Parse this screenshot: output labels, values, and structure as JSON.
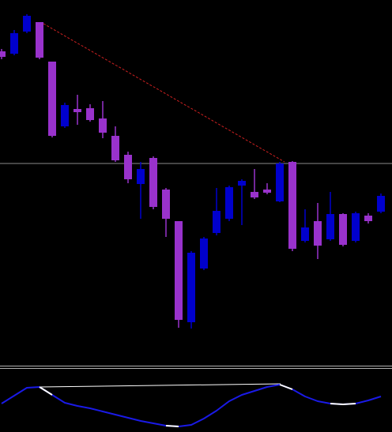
{
  "chart_data": [
    {
      "type": "candlestick",
      "up_color": "#0000cd",
      "down_color": "#9932cc",
      "open": [
        395,
        392,
        420,
        432,
        382,
        300,
        322,
        323,
        310,
        288,
        264,
        227,
        260,
        220,
        180,
        52,
        120,
        165,
        183,
        225,
        217,
        220,
        205,
        255,
        155,
        180,
        157,
        189,
        155,
        187,
        192
      ],
      "high": [
        398,
        422,
        442,
        432,
        382,
        330,
        340,
        328,
        332,
        300,
        268,
        255,
        262,
        222,
        180,
        142,
        160,
        222,
        225,
        233,
        246,
        228,
        255,
        256,
        195,
        203,
        217,
        190,
        192,
        190,
        215
      ],
      "low": [
        385,
        390,
        418,
        385,
        286,
        298,
        302,
        306,
        285,
        255,
        228,
        183,
        195,
        160,
        45,
        44,
        118,
        162,
        180,
        175,
        208,
        214,
        204,
        142,
        153,
        132,
        155,
        148,
        153,
        177,
        190
      ],
      "close": [
        388,
        418,
        440,
        387,
        288,
        327,
        318,
        308,
        292,
        257,
        233,
        246,
        198,
        183,
        55,
        140,
        158,
        193,
        223,
        231,
        210,
        216,
        253,
        145,
        172,
        149,
        189,
        150,
        190,
        180,
        212
      ],
      "ylim": [
        0,
        460
      ]
    },
    {
      "type": "line",
      "series": [
        {
          "color": "#1a1ae6",
          "values": [
            36,
            46,
            56,
            57,
            47,
            37,
            33,
            30,
            26,
            22,
            18,
            14,
            11,
            8,
            7,
            9,
            17,
            27,
            39,
            47,
            52,
            57,
            60,
            54,
            45,
            39,
            36,
            35,
            36,
            40,
            45
          ]
        },
        {
          "color": "#ffffff",
          "values": [
            null,
            null,
            null,
            57,
            47,
            null,
            null,
            null,
            null,
            null,
            null,
            null,
            null,
            8,
            7,
            null,
            null,
            null,
            null,
            null,
            null,
            null,
            60,
            54,
            null,
            null,
            36,
            35,
            36,
            null,
            null
          ]
        }
      ],
      "ylim": [
        0,
        81
      ]
    }
  ]
}
